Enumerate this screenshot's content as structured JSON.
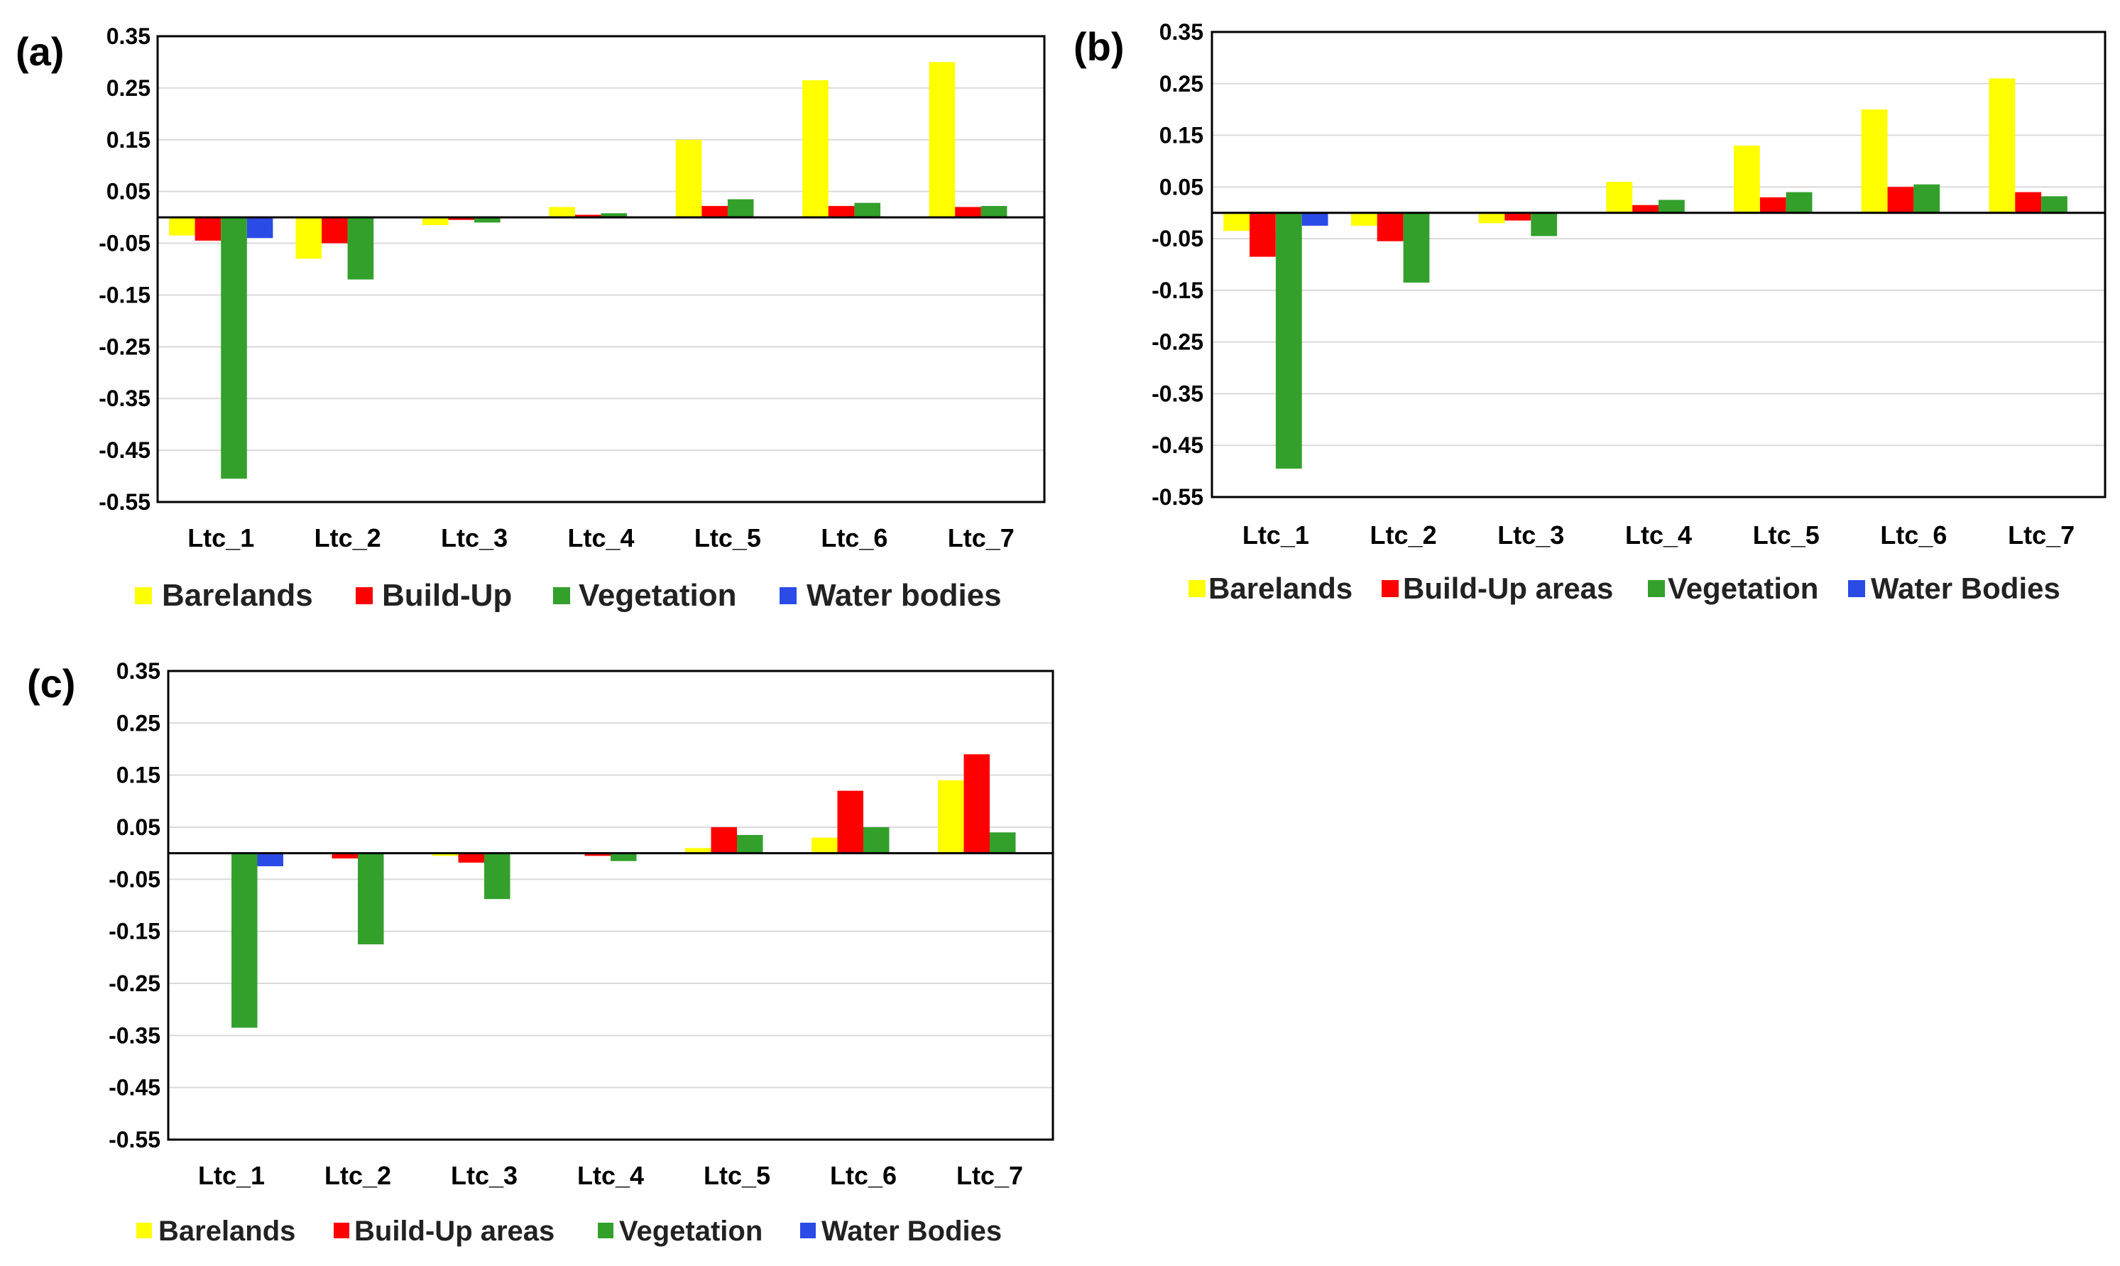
{
  "colors": {
    "Barelands": "#ffff00",
    "Build-Up": "#ff0000",
    "Vegetation": "#33a02c",
    "Water bodies": "#2b4be6"
  },
  "chart_data": [
    {
      "panel": "(a)",
      "type": "bar",
      "categories": [
        "Ltc_1",
        "Ltc_2",
        "Ltc_3",
        "Ltc_4",
        "Ltc_5",
        "Ltc_6",
        "Ltc_7"
      ],
      "yticks": [
        "0.35",
        "0.25",
        "0.15",
        "0.05",
        "-0.05",
        "-0.15",
        "-0.25",
        "-0.35",
        "-0.45",
        "-0.55"
      ],
      "ylim": [
        -0.55,
        0.35
      ],
      "grid": true,
      "legend_position": "bottom",
      "series": [
        {
          "name": "Barelands",
          "color_key": "Barelands",
          "values": [
            -0.035,
            -0.08,
            -0.015,
            0.02,
            0.15,
            0.265,
            0.3
          ]
        },
        {
          "name": "Build-Up",
          "color_key": "Build-Up",
          "values": [
            -0.045,
            -0.05,
            -0.005,
            0.005,
            0.022,
            0.022,
            0.02
          ]
        },
        {
          "name": "Vegetation",
          "color_key": "Vegetation",
          "values": [
            -0.505,
            -0.12,
            -0.01,
            0.008,
            0.035,
            0.028,
            0.022
          ]
        },
        {
          "name": "Water bodies",
          "color_key": "Water bodies",
          "values": [
            -0.04,
            0,
            0,
            0,
            0,
            0,
            0
          ]
        }
      ]
    },
    {
      "panel": "(b)",
      "type": "bar",
      "categories": [
        "Ltc_1",
        "Ltc_2",
        "Ltc_3",
        "Ltc_4",
        "Ltc_5",
        "Ltc_6",
        "Ltc_7"
      ],
      "yticks": [
        "0.35",
        "0.25",
        "0.15",
        "0.05",
        "-0.05",
        "-0.15",
        "-0.25",
        "-0.35",
        "-0.45",
        "-0.55"
      ],
      "ylim": [
        -0.55,
        0.35
      ],
      "grid": true,
      "legend_position": "bottom",
      "series": [
        {
          "name": "Barelands",
          "color_key": "Barelands",
          "values": [
            -0.035,
            -0.025,
            -0.02,
            0.06,
            0.13,
            0.2,
            0.26
          ]
        },
        {
          "name": "Build-Up areas",
          "color_key": "Build-Up",
          "values": [
            -0.085,
            -0.055,
            -0.015,
            0.015,
            0.03,
            0.05,
            0.04
          ]
        },
        {
          "name": "Vegetation",
          "color_key": "Vegetation",
          "values": [
            -0.495,
            -0.135,
            -0.045,
            0.025,
            0.04,
            0.055,
            0.032
          ]
        },
        {
          "name": "Water Bodies",
          "color_key": "Water bodies",
          "values": [
            -0.025,
            0,
            0,
            0,
            0,
            0,
            0
          ]
        }
      ]
    },
    {
      "panel": "(c)",
      "type": "bar",
      "categories": [
        "Ltc_1",
        "Ltc_2",
        "Ltc_3",
        "Ltc_4",
        "Ltc_5",
        "Ltc_6",
        "Ltc_7"
      ],
      "yticks": [
        "0.35",
        "0.25",
        "0.15",
        "0.05",
        "-0.05",
        "-0.15",
        "-0.25",
        "-0.35",
        "-0.45",
        "-0.55"
      ],
      "ylim": [
        -0.55,
        0.35
      ],
      "grid": true,
      "legend_position": "bottom",
      "series": [
        {
          "name": "Barelands",
          "color_key": "Barelands",
          "values": [
            0,
            0,
            -0.005,
            0,
            0.01,
            0.03,
            0.14
          ]
        },
        {
          "name": "Build-Up areas",
          "color_key": "Build-Up",
          "values": [
            0,
            -0.01,
            -0.018,
            -0.005,
            0.05,
            0.12,
            0.19
          ]
        },
        {
          "name": "Vegetation",
          "color_key": "Vegetation",
          "values": [
            -0.335,
            -0.175,
            -0.088,
            -0.015,
            0.035,
            0.05,
            0.04
          ]
        },
        {
          "name": "Water Bodies",
          "color_key": "Water bodies",
          "values": [
            -0.025,
            0,
            0,
            0,
            0,
            0,
            0
          ]
        }
      ]
    }
  ]
}
